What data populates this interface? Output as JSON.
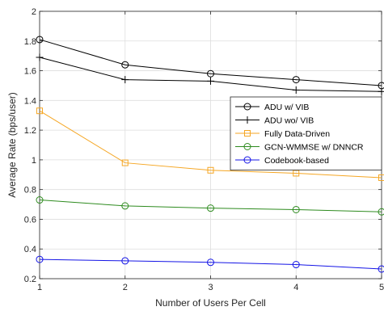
{
  "chart_data": {
    "type": "line",
    "title": "",
    "xlabel": "Number of Users Per Cell",
    "ylabel": "Average Rate (bps/user)",
    "x": [
      1,
      2,
      3,
      4,
      5
    ],
    "xticks": [
      "1",
      "2",
      "3",
      "4",
      "5"
    ],
    "xlim": [
      1,
      5
    ],
    "ylim": [
      0.2,
      2.0
    ],
    "yticks": [
      "0.2",
      "0.4",
      "0.6",
      "0.8",
      "1",
      "1.2",
      "1.4",
      "1.6",
      "1.8",
      "2"
    ],
    "grid": true,
    "legend_position": "right",
    "series": [
      {
        "name": "ADU w/ VIB",
        "values": [
          1.81,
          1.64,
          1.58,
          1.54,
          1.5
        ],
        "color": "#000000",
        "marker": "circle"
      },
      {
        "name": "ADU wo/ VIB",
        "values": [
          1.69,
          1.54,
          1.53,
          1.47,
          1.46
        ],
        "color": "#000000",
        "marker": "plus"
      },
      {
        "name": "Fully Data-Driven",
        "values": [
          1.33,
          0.98,
          0.93,
          0.91,
          0.88
        ],
        "color": "#F5A623",
        "marker": "square"
      },
      {
        "name": "GCN-WMMSE w/ DNNCR",
        "values": [
          0.73,
          0.69,
          0.675,
          0.665,
          0.65
        ],
        "color": "#2E8B1F",
        "marker": "circle"
      },
      {
        "name": "Codebook-based",
        "values": [
          0.33,
          0.32,
          0.31,
          0.295,
          0.265
        ],
        "color": "#1414E6",
        "marker": "circle"
      }
    ]
  }
}
